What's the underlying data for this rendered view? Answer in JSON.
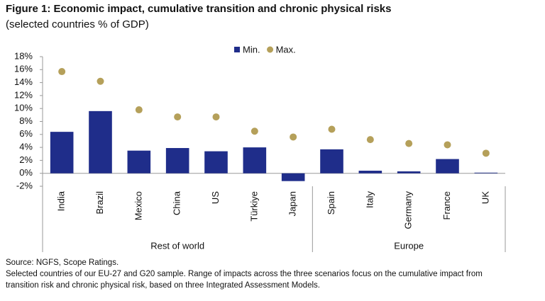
{
  "chart_data": {
    "type": "bar",
    "title": "Figure 1: Economic impact, cumulative transition and chronic physical risks",
    "subtitle": "(selected countries % of GDP)",
    "categories": [
      "India",
      "Brazil",
      "Mexico",
      "China",
      "US",
      "Türkiye",
      "Japan",
      "Spain",
      "Italy",
      "Germany",
      "France",
      "UK"
    ],
    "category_groups": [
      "Rest of world",
      "Rest of world",
      "Rest of world",
      "Rest of world",
      "Rest of world",
      "Rest of world",
      "Rest of world",
      "Europe",
      "Europe",
      "Europe",
      "Europe",
      "Europe"
    ],
    "series": [
      {
        "name": "Min.",
        "color": "#1f2d8a",
        "marker": "bar",
        "values": [
          6.4,
          9.6,
          3.5,
          3.9,
          3.4,
          4.0,
          -1.2,
          3.7,
          0.4,
          0.3,
          2.2,
          0.1
        ]
      },
      {
        "name": "Max.",
        "color": "#b5a05a",
        "marker": "dot",
        "values": [
          15.7,
          14.2,
          9.8,
          8.7,
          8.7,
          6.5,
          5.6,
          6.8,
          5.2,
          4.6,
          4.4,
          3.1
        ]
      }
    ],
    "ylim": [
      -2,
      18
    ],
    "yticks": [
      {
        "value": -2,
        "label": "-2%"
      },
      {
        "value": 0,
        "label": "0%"
      },
      {
        "value": 2,
        "label": "2%"
      },
      {
        "value": 4,
        "label": "4%"
      },
      {
        "value": 6,
        "label": "6%"
      },
      {
        "value": 8,
        "label": "8%"
      },
      {
        "value": 10,
        "label": "10%"
      },
      {
        "value": 12,
        "label": "12%"
      },
      {
        "value": 14,
        "label": "14%"
      },
      {
        "value": 16,
        "label": "16%"
      },
      {
        "value": 18,
        "label": "18%"
      }
    ],
    "legend": "top",
    "notes": [
      "Source: NGFS, Scope Ratings.",
      "Selected countries of our EU-27 and G20 sample. Range of impacts across the three scenarios focus on the cumulative impact from",
      "transition risk and chronic physical risk, based on three Integrated Assessment Models."
    ]
  }
}
